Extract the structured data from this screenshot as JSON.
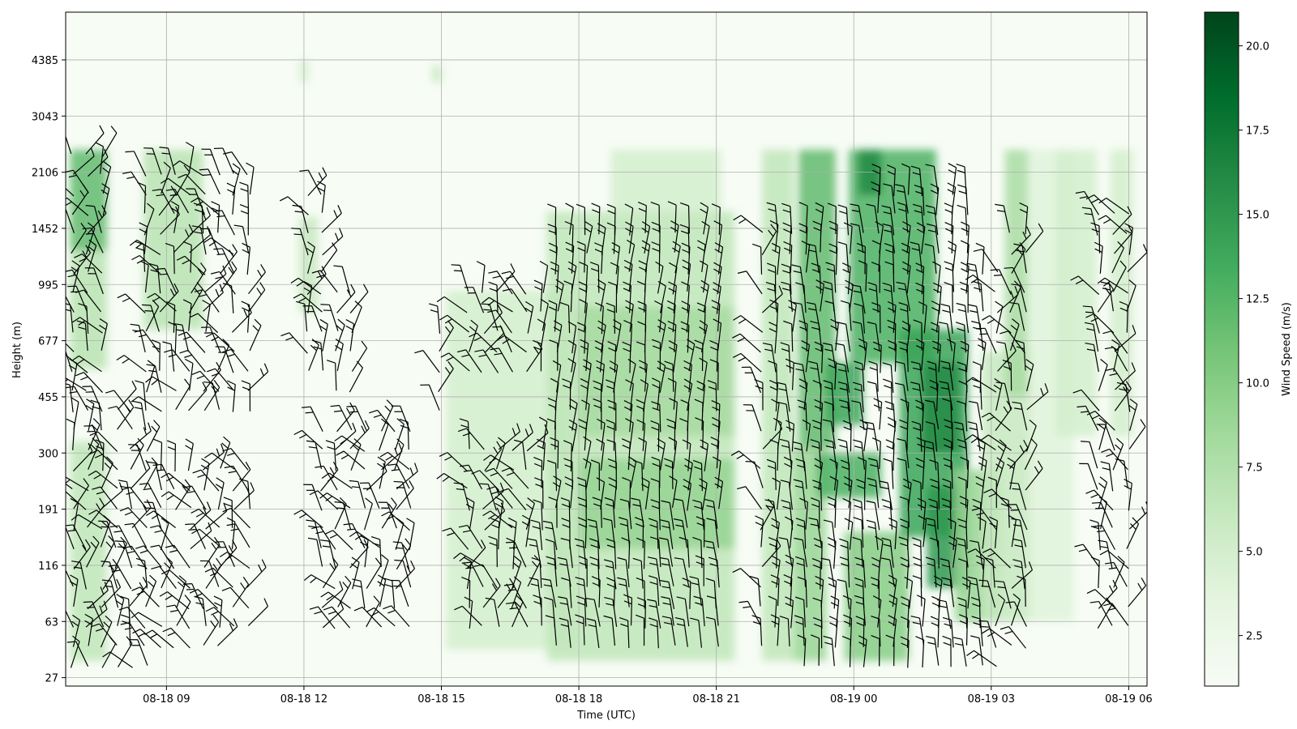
{
  "chart_data": {
    "type": "heatmap",
    "title": "",
    "xlabel": "Time (UTC)",
    "ylabel": "Height (m)",
    "x_ticks": [
      "08-18 09",
      "08-18 12",
      "08-18 15",
      "08-18 18",
      "08-18 21",
      "08-19 00",
      "08-19 03",
      "08-19 06"
    ],
    "y_ticks": [
      "27",
      "63",
      "116",
      "191",
      "300",
      "455",
      "677",
      "995",
      "1452",
      "2106",
      "3043",
      "4385"
    ],
    "x_range_hours": [
      6.8,
      30.4
    ],
    "colorbar": {
      "label": "Wind Speed (m/s)",
      "ticks": [
        "2.5",
        "5.0",
        "7.5",
        "10.0",
        "12.5",
        "15.0",
        "17.5",
        "20.0"
      ],
      "range": [
        1.0,
        21.0
      ],
      "colormap": "Greens"
    },
    "grid": true,
    "overlay": "wind barbs",
    "speed_regions": [
      {
        "t": [
          6.9,
          7.7
        ],
        "lev": [
          7.6,
          9.4
        ],
        "v": 12
      },
      {
        "t": [
          6.9,
          7.7
        ],
        "lev": [
          5.5,
          7.6
        ],
        "v": 7
      },
      {
        "t": [
          6.9,
          7.7
        ],
        "lev": [
          0.3,
          4.2
        ],
        "v": 6.5
      },
      {
        "t": [
          8.5,
          9.8
        ],
        "lev": [
          6.2,
          9.4
        ],
        "v": 7
      },
      {
        "t": [
          11.9,
          12.3
        ],
        "lev": [
          6.5,
          8.2
        ],
        "v": 6
      },
      {
        "t": [
          11.9,
          12.1
        ],
        "lev": [
          10.6,
          11.0
        ],
        "v": 5
      },
      {
        "t": [
          14.8,
          15.0
        ],
        "lev": [
          10.6,
          10.9
        ],
        "v": 6
      },
      {
        "t": [
          15.1,
          17.9
        ],
        "lev": [
          0.5,
          6.9
        ],
        "v": 5
      },
      {
        "t": [
          17.3,
          21.4
        ],
        "lev": [
          0.3,
          8.3
        ],
        "v": 6.5
      },
      {
        "t": [
          18.0,
          21.4
        ],
        "lev": [
          2.3,
          3.9
        ],
        "v": 9
      },
      {
        "t": [
          18.0,
          21.4
        ],
        "lev": [
          4.3,
          6.6
        ],
        "v": 8
      },
      {
        "t": [
          18.7,
          21.1
        ],
        "lev": [
          8.3,
          9.4
        ],
        "v": 5
      },
      {
        "t": [
          22.0,
          22.7
        ],
        "lev": [
          0.3,
          9.4
        ],
        "v": 6.5
      },
      {
        "t": [
          22.7,
          23.4
        ],
        "lev": [
          0.3,
          4.1
        ],
        "v": 9
      },
      {
        "t": [
          22.8,
          23.6
        ],
        "lev": [
          4.1,
          9.4
        ],
        "v": 12
      },
      {
        "t": [
          23.2,
          24.6
        ],
        "lev": [
          3.2,
          4.0
        ],
        "v": 13
      },
      {
        "t": [
          23.4,
          24.2
        ],
        "lev": [
          4.5,
          5.6
        ],
        "v": 14
      },
      {
        "t": [
          23.8,
          25.2
        ],
        "lev": [
          0.3,
          2.6
        ],
        "v": 10
      },
      {
        "t": [
          23.9,
          25.8
        ],
        "lev": [
          5.6,
          9.4
        ],
        "v": 13
      },
      {
        "t": [
          24.1,
          24.6
        ],
        "lev": [
          8.6,
          9.4
        ],
        "v": 16
      },
      {
        "t": [
          25.0,
          26.5
        ],
        "lev": [
          2.5,
          6.2
        ],
        "v": 14
      },
      {
        "t": [
          25.5,
          26.3
        ],
        "lev": [
          4.0,
          5.6
        ],
        "v": 16
      },
      {
        "t": [
          25.6,
          26.5
        ],
        "lev": [
          1.6,
          3.4
        ],
        "v": 15
      },
      {
        "t": [
          26.2,
          27.2
        ],
        "lev": [
          1.0,
          3.7
        ],
        "v": 9
      },
      {
        "t": [
          26.8,
          27.9
        ],
        "lev": [
          1.0,
          5.8
        ],
        "v": 6
      },
      {
        "t": [
          27.3,
          27.8
        ],
        "lev": [
          5.0,
          9.4
        ],
        "v": 8
      },
      {
        "t": [
          27.8,
          28.8
        ],
        "lev": [
          1.0,
          9.4
        ],
        "v": 4
      },
      {
        "t": [
          28.4,
          29.3
        ],
        "lev": [
          4.3,
          9.4
        ],
        "v": 5
      },
      {
        "t": [
          29.6,
          30.1
        ],
        "lev": [
          4.3,
          9.4
        ],
        "v": 5
      }
    ]
  }
}
